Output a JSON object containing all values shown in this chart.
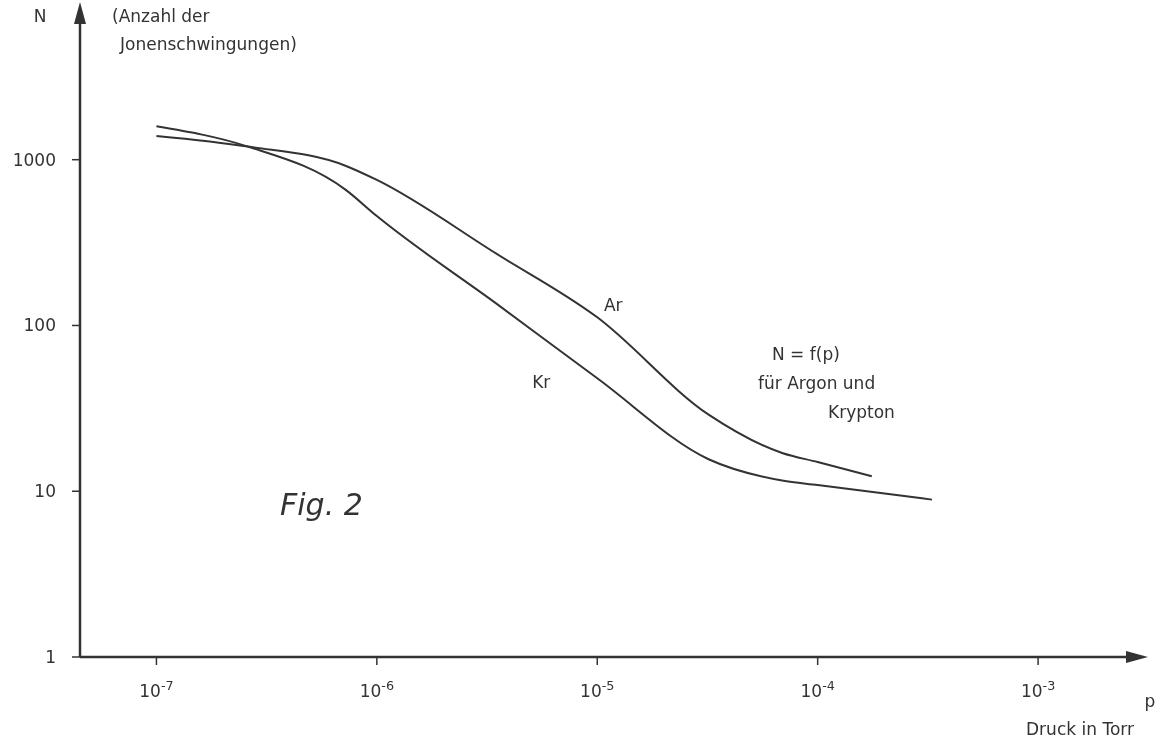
{
  "chart_data": {
    "type": "line",
    "ylabel": "N",
    "xlabel": "p",
    "annotations": [
      "(Anzahl der",
      "Jonenschwingungen)",
      "N = f(p)",
      "für Argon und",
      "Krypton",
      "Fig. 2",
      "Druck in Torr"
    ],
    "log": "xy",
    "grid": false,
    "legend": false,
    "marker": "none",
    "line_style": "solid",
    "xlim": [
      4.5e-08,
      0.0029
    ],
    "ylim": [
      1,
      8000
    ],
    "xticks": [
      {
        "value": 1e-07,
        "label": "10$^{-7}$"
      },
      {
        "value": 1e-06,
        "label": "10$^{-6}$"
      },
      {
        "value": 1e-05,
        "label": "10$^{-5}$"
      },
      {
        "value": 0.0001,
        "label": "10$^{-4}$"
      },
      {
        "value": 0.001,
        "label": "10$^{-3}$"
      }
    ],
    "yticks": [
      1,
      10,
      100,
      1000
    ],
    "series": [
      {
        "name": "Ar",
        "color": "#333333",
        "x": [
          1e-07,
          2.6e-07,
          7.2e-07,
          1e-06,
          3.5e-06,
          1e-05,
          3.2e-05,
          6.9e-05,
          0.0001,
          0.000176
        ],
        "values": [
          1390,
          1200,
          920,
          755,
          270,
          112,
          29,
          17,
          15,
          12.3
        ]
      },
      {
        "name": "Kr",
        "color": "#333333",
        "x": [
          1e-07,
          2.6e-07,
          7.2e-07,
          1e-06,
          3.5e-06,
          1e-05,
          3.2e-05,
          6.9e-05,
          0.0001,
          0.00033
        ],
        "values": [
          1590,
          1200,
          660,
          457,
          135,
          48,
          15.6,
          11.6,
          10.9,
          8.9
        ]
      }
    ]
  }
}
